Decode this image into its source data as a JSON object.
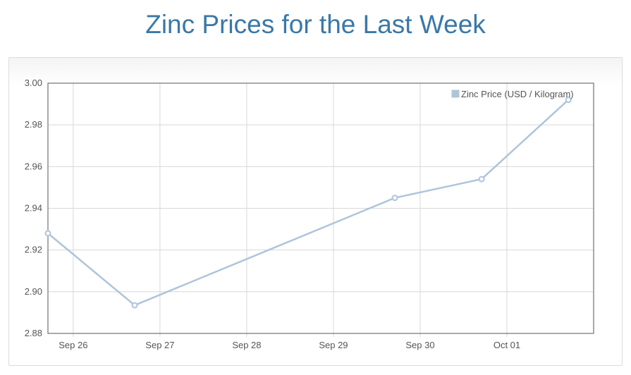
{
  "page": {
    "title": "Zinc Prices for the Last Week"
  },
  "colors": {
    "title": "#3a78a8",
    "series_line": "#afc4dc",
    "grid": "#d8d8d8",
    "axis": "#555555"
  },
  "chart_data": {
    "type": "line",
    "title": "Zinc Prices for the Last Week",
    "xlabel": "",
    "ylabel": "",
    "x_ticks": [
      {
        "label": "Sep 26",
        "date": "2023-09-26"
      },
      {
        "label": "Sep 27",
        "date": "2023-09-27"
      },
      {
        "label": "Sep 28",
        "date": "2023-09-28"
      },
      {
        "label": "Sep 29",
        "date": "2023-09-29"
      },
      {
        "label": "Sep 30",
        "date": "2023-09-30"
      },
      {
        "label": "Oct 01",
        "date": "2023-10-01"
      }
    ],
    "xlim": [
      "2023-09-25T17:00",
      "2023-10-02T00:00"
    ],
    "ylim": [
      2.88,
      3.0
    ],
    "y_ticks": [
      "2.88",
      "2.90",
      "2.92",
      "2.94",
      "2.96",
      "2.98",
      "3.00"
    ],
    "grid": true,
    "legend_position": "top-right",
    "series": [
      {
        "name": "Zinc Price (USD / Kilogram)",
        "points": [
          {
            "x": "2023-09-25T17:00",
            "y": 2.928
          },
          {
            "x": "2023-09-26T17:00",
            "y": 2.8935
          },
          {
            "x": "2023-09-29T17:00",
            "y": 2.945
          },
          {
            "x": "2023-09-30T17:00",
            "y": 2.954
          },
          {
            "x": "2023-10-01T17:00",
            "y": 2.992
          }
        ]
      }
    ]
  }
}
